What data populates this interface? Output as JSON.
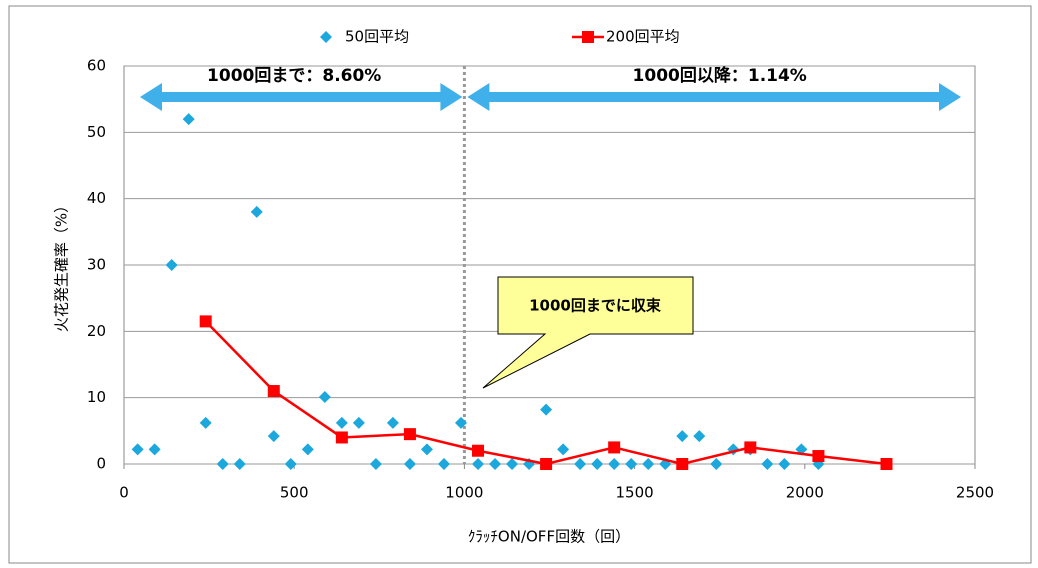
{
  "chart_data": {
    "type": "combo",
    "xlabel": "ｸﾗｯﾁON/OFF回数（回）",
    "ylabel": "火花発生確率（%）",
    "xlim": [
      0,
      2500
    ],
    "xticks": [
      0,
      500,
      1000,
      1500,
      2000,
      2500
    ],
    "ylim": [
      0,
      60
    ],
    "yticks": [
      0,
      10,
      20,
      30,
      40,
      50,
      60
    ],
    "grid": true,
    "legend": "top",
    "vline": 1000,
    "annotations": [
      "1000回まで：8.60%",
      "1000回以降：1.14%",
      "1000回までに収束"
    ],
    "series": [
      {
        "name": "50回平均",
        "type": "scatter",
        "color": "#1ca8dd",
        "x": [
          40,
          90,
          140,
          190,
          240,
          290,
          340,
          390,
          440,
          490,
          540,
          590,
          640,
          690,
          740,
          790,
          840,
          890,
          940,
          990,
          1040,
          1090,
          1140,
          1190,
          1240,
          1290,
          1340,
          1390,
          1440,
          1490,
          1540,
          1590,
          1640,
          1690,
          1740,
          1790,
          1840,
          1890,
          1940,
          1990,
          2040
        ],
        "values": [
          2.2,
          2.2,
          30,
          52,
          6.2,
          0,
          0,
          38,
          4.2,
          0,
          2.2,
          10.1,
          6.2,
          6.2,
          0,
          6.2,
          0,
          2.2,
          0,
          6.2,
          0,
          0,
          0,
          0,
          8.2,
          2.2,
          0,
          0,
          0,
          0,
          0,
          0,
          4.2,
          4.2,
          0,
          2.2,
          2.2,
          0,
          0,
          2.2,
          0
        ]
      },
      {
        "name": "200回平均",
        "type": "line",
        "color": "#ff0000",
        "x": [
          240,
          440,
          640,
          840,
          1040,
          1240,
          1440,
          1640,
          1840,
          2040,
          2240
        ],
        "values": [
          21.5,
          11,
          4,
          4.5,
          2,
          0,
          2.5,
          0,
          2.5,
          1.2,
          0
        ]
      }
    ]
  }
}
